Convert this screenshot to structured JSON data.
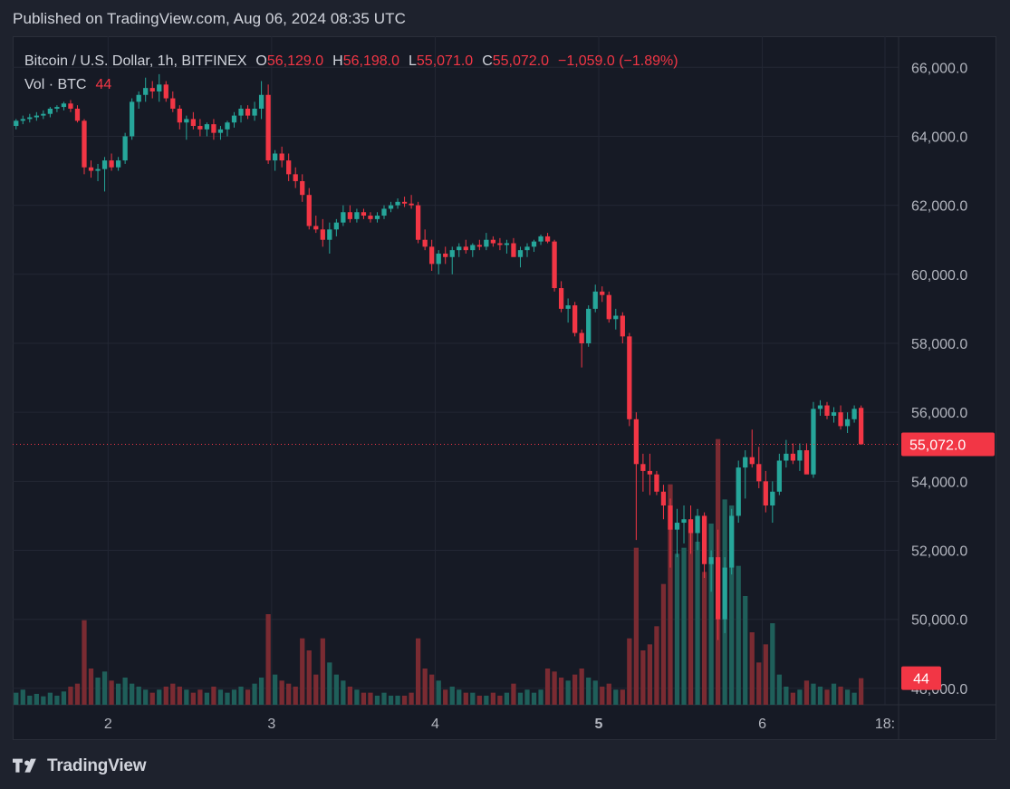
{
  "header": {
    "published": "Published on TradingView.com, Aug 06, 2024 08:35 UTC"
  },
  "legend": {
    "symbol": "Bitcoin / U.S. Dollar, 1h, BITFINEX",
    "open_key": "O",
    "open": "56,129.0",
    "high_key": "H",
    "high": "56,198.0",
    "low_key": "L",
    "low": "55,071.0",
    "close_key": "C",
    "close": "55,072.0",
    "change": "−1,059.0 (−1.89%)",
    "vol_label": "Vol · BTC",
    "vol_value": "44"
  },
  "footer": {
    "brand": "TradingView",
    "logo_icon": "tradingview-logo-icon"
  },
  "colors": {
    "up": "#26a69a",
    "down": "#f23645",
    "vol_up": "#1f5f5a",
    "vol_down": "#7a2b32",
    "background": "#161a25",
    "grid": "#232734",
    "text": "#b2b5be"
  },
  "chart_data": {
    "type": "candlestick",
    "symbol": "Bitcoin / U.S. Dollar",
    "interval": "1h",
    "exchange": "BITFINEX",
    "price_axis": {
      "position": "right",
      "ticks": [
        48000,
        50000,
        52000,
        54000,
        56000,
        58000,
        60000,
        62000,
        64000,
        66000
      ],
      "tick_labels": [
        "48,000.0",
        "50,000.0",
        "52,000.0",
        "54,000.0",
        "56,000.0",
        "58,000.0",
        "60,000.0",
        "62,000.0",
        "64,000.0",
        "66,000.0"
      ],
      "range": [
        46500,
        66900
      ]
    },
    "time_axis": {
      "start": "2024-08-01T10:00Z",
      "interval_hours": 1,
      "range": [
        "2024-08-01T10:00Z",
        "2024-08-06T20:00Z"
      ],
      "ticks": [
        {
          "label": "2",
          "time": "2024-08-02T00:00Z"
        },
        {
          "label": "3",
          "time": "2024-08-03T00:00Z"
        },
        {
          "label": "4",
          "time": "2024-08-04T00:00Z"
        },
        {
          "label": "5",
          "time": "2024-08-05T00:00Z",
          "bold": true
        },
        {
          "label": "6",
          "time": "2024-08-06T00:00Z"
        },
        {
          "label": "18:",
          "time": "2024-08-06T18:00Z"
        }
      ]
    },
    "last_price": {
      "value": 55072,
      "label": "55,072.0"
    },
    "last_volume": {
      "value": 44,
      "label": "44"
    },
    "volume_range": [
      0,
      300
    ],
    "grid": true,
    "candles": {
      "columns": [
        "open",
        "high",
        "low",
        "close",
        "volume"
      ],
      "rows": [
        [
          64300,
          64500,
          64200,
          64450,
          20
        ],
        [
          64450,
          64600,
          64350,
          64500,
          25
        ],
        [
          64500,
          64650,
          64400,
          64550,
          15
        ],
        [
          64550,
          64700,
          64450,
          64600,
          18
        ],
        [
          64600,
          64750,
          64500,
          64650,
          14
        ],
        [
          64650,
          64850,
          64550,
          64800,
          20
        ],
        [
          64800,
          64900,
          64700,
          64850,
          15
        ],
        [
          64850,
          65000,
          64750,
          64950,
          22
        ],
        [
          64950,
          65050,
          64700,
          64800,
          30
        ],
        [
          64800,
          64900,
          64400,
          64450,
          35
        ],
        [
          64450,
          64500,
          62900,
          63100,
          140
        ],
        [
          63100,
          63300,
          62800,
          63000,
          60
        ],
        [
          63000,
          63200,
          62700,
          63050,
          45
        ],
        [
          63050,
          63400,
          62400,
          63300,
          55
        ],
        [
          63300,
          63500,
          63000,
          63100,
          40
        ],
        [
          63100,
          63400,
          63000,
          63300,
          35
        ],
        [
          63300,
          64100,
          63200,
          64000,
          45
        ],
        [
          64000,
          65100,
          63900,
          65000,
          35
        ],
        [
          65000,
          65300,
          64800,
          65200,
          30
        ],
        [
          65200,
          65700,
          65000,
          65400,
          25
        ],
        [
          65400,
          65600,
          65100,
          65300,
          20
        ],
        [
          65300,
          65800,
          65000,
          65500,
          25
        ],
        [
          65500,
          65600,
          65000,
          65100,
          30
        ],
        [
          65100,
          65300,
          64700,
          64800,
          35
        ],
        [
          64800,
          64900,
          64200,
          64400,
          30
        ],
        [
          64400,
          64600,
          63900,
          64500,
          25
        ],
        [
          64500,
          64700,
          64200,
          64300,
          20
        ],
        [
          64300,
          64500,
          64000,
          64200,
          25
        ],
        [
          64200,
          64400,
          64000,
          64350,
          20
        ],
        [
          64350,
          64500,
          63900,
          64100,
          30
        ],
        [
          64100,
          64300,
          63900,
          64200,
          25
        ],
        [
          64200,
          64450,
          64000,
          64400,
          20
        ],
        [
          64400,
          64700,
          64250,
          64600,
          25
        ],
        [
          64600,
          64900,
          64400,
          64800,
          30
        ],
        [
          64800,
          64900,
          64500,
          64600,
          25
        ],
        [
          64600,
          65000,
          64450,
          64800,
          35
        ],
        [
          64800,
          65600,
          64500,
          65200,
          45
        ],
        [
          65200,
          65500,
          63200,
          63300,
          150
        ],
        [
          63300,
          63600,
          63000,
          63500,
          50
        ],
        [
          63500,
          63700,
          63100,
          63300,
          40
        ],
        [
          63300,
          63500,
          62700,
          62900,
          35
        ],
        [
          62900,
          63100,
          62500,
          62700,
          30
        ],
        [
          62700,
          62900,
          62100,
          62300,
          110
        ],
        [
          62300,
          62500,
          61300,
          61400,
          90
        ],
        [
          61400,
          61700,
          61200,
          61300,
          50
        ],
        [
          61300,
          61600,
          60800,
          61000,
          110
        ],
        [
          61000,
          61500,
          60600,
          61300,
          70
        ],
        [
          61300,
          61600,
          61100,
          61500,
          50
        ],
        [
          61500,
          62000,
          61400,
          61800,
          40
        ],
        [
          61800,
          62000,
          61500,
          61600,
          30
        ],
        [
          61600,
          61900,
          61500,
          61800,
          25
        ],
        [
          61800,
          61900,
          61600,
          61700,
          20
        ],
        [
          61700,
          61800,
          61500,
          61600,
          20
        ],
        [
          61600,
          61800,
          61500,
          61700,
          15
        ],
        [
          61700,
          62000,
          61600,
          61900,
          20
        ],
        [
          61900,
          62100,
          61800,
          62000,
          15
        ],
        [
          62000,
          62200,
          61900,
          62100,
          15
        ],
        [
          62100,
          62250,
          61950,
          62050,
          15
        ],
        [
          62050,
          62300,
          61900,
          62000,
          20
        ],
        [
          62000,
          62100,
          60900,
          61000,
          110
        ],
        [
          61000,
          61300,
          60700,
          60800,
          60
        ],
        [
          60800,
          61000,
          60100,
          60300,
          50
        ],
        [
          60300,
          60700,
          60000,
          60600,
          40
        ],
        [
          60600,
          60800,
          60300,
          60500,
          25
        ],
        [
          60500,
          60800,
          60000,
          60700,
          30
        ],
        [
          60700,
          60900,
          60500,
          60800,
          25
        ],
        [
          60800,
          61000,
          60600,
          60700,
          20
        ],
        [
          60700,
          60900,
          60500,
          60850,
          20
        ],
        [
          60850,
          61000,
          60700,
          60800,
          15
        ],
        [
          60800,
          61200,
          60700,
          61000,
          15
        ],
        [
          61000,
          61100,
          60800,
          60900,
          20
        ],
        [
          60900,
          61050,
          60700,
          60850,
          15
        ],
        [
          60850,
          61000,
          60600,
          60900,
          20
        ],
        [
          60900,
          61050,
          60600,
          60500,
          35
        ],
        [
          60500,
          60800,
          60200,
          60700,
          20
        ],
        [
          60700,
          60900,
          60500,
          60800,
          25
        ],
        [
          60800,
          61000,
          60650,
          60950,
          20
        ],
        [
          60950,
          61150,
          60850,
          61100,
          25
        ],
        [
          61100,
          61200,
          60900,
          60950,
          60
        ],
        [
          60950,
          61000,
          59500,
          59600,
          55
        ],
        [
          59600,
          59800,
          58900,
          59000,
          45
        ],
        [
          59000,
          59300,
          58600,
          59100,
          40
        ],
        [
          59100,
          59200,
          58200,
          58300,
          50
        ],
        [
          58300,
          58400,
          57300,
          58000,
          60
        ],
        [
          58000,
          59100,
          57900,
          59000,
          45
        ],
        [
          59000,
          59700,
          58900,
          59500,
          40
        ],
        [
          59500,
          59650,
          59200,
          59400,
          30
        ],
        [
          59400,
          59500,
          58600,
          58700,
          35
        ],
        [
          58700,
          59000,
          58400,
          58800,
          25
        ],
        [
          58800,
          58900,
          58000,
          58200,
          25
        ],
        [
          58200,
          58300,
          55600,
          55800,
          110
        ],
        [
          55800,
          56000,
          52300,
          54500,
          260
        ],
        [
          54500,
          54800,
          53700,
          54300,
          90
        ],
        [
          54300,
          54800,
          53600,
          54200,
          100
        ],
        [
          54200,
          54300,
          53600,
          53700,
          130
        ],
        [
          53700,
          53900,
          52900,
          53300,
          200
        ],
        [
          53300,
          53500,
          51500,
          52600,
          365
        ],
        [
          52600,
          53200,
          51800,
          52800,
          250
        ],
        [
          52800,
          53300,
          52200,
          52900,
          260
        ],
        [
          52900,
          53300,
          51900,
          52500,
          290
        ],
        [
          52500,
          53200,
          52000,
          53000,
          270
        ],
        [
          53000,
          53100,
          51200,
          51600,
          220
        ],
        [
          51600,
          52000,
          50800,
          51800,
          300
        ],
        [
          51800,
          52600,
          49400,
          50000,
          440
        ],
        [
          50000,
          51800,
          49600,
          51500,
          340
        ],
        [
          51500,
          53200,
          51300,
          53000,
          330
        ],
        [
          53000,
          54600,
          52800,
          54400,
          230
        ],
        [
          54400,
          54900,
          53500,
          54700,
          180
        ],
        [
          54700,
          55500,
          54400,
          54500,
          120
        ],
        [
          54500,
          55000,
          53800,
          54000,
          70
        ],
        [
          54000,
          54300,
          53100,
          53300,
          100
        ],
        [
          53300,
          54000,
          52800,
          53700,
          135
        ],
        [
          53700,
          54800,
          53600,
          54600,
          50
        ],
        [
          54600,
          55200,
          54400,
          54800,
          30
        ],
        [
          54800,
          55100,
          54500,
          54600,
          20
        ],
        [
          54600,
          55100,
          54300,
          54900,
          25
        ],
        [
          54900,
          55100,
          54400,
          54200,
          40
        ],
        [
          54200,
          56300,
          54100,
          56100,
          35
        ],
        [
          56100,
          56350,
          55900,
          56200,
          30
        ],
        [
          56200,
          56300,
          55800,
          55900,
          25
        ],
        [
          55900,
          56150,
          55700,
          56000,
          35
        ],
        [
          56000,
          56200,
          55500,
          55600,
          30
        ],
        [
          55600,
          56000,
          55400,
          55800,
          25
        ],
        [
          55800,
          56200,
          55700,
          56100,
          20
        ],
        [
          56129,
          56198,
          55071,
          55072,
          44
        ]
      ]
    }
  }
}
